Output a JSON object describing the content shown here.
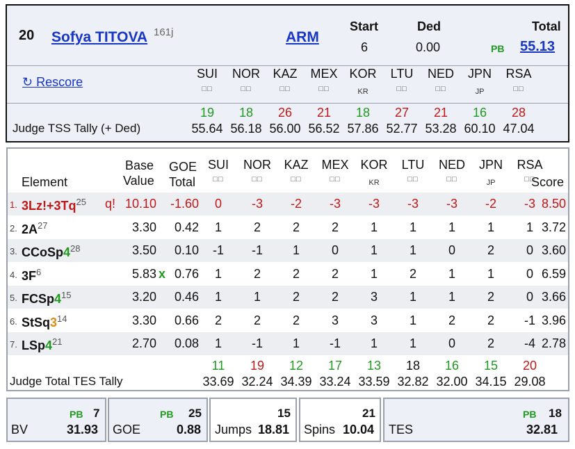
{
  "skater": {
    "rank": "20",
    "name": "Sofya TITOVA",
    "sup": "161j",
    "nation": "ARM",
    "start_label": "Start",
    "start": "6",
    "ded_label": "Ded",
    "ded": "0.00",
    "total_label": "Total",
    "pb": "PB",
    "total": "55.13"
  },
  "rescore": "↻ Rescore",
  "judges": [
    {
      "code": "SUI",
      "sub": "",
      "tss_rank": "19",
      "tss_color": "green",
      "tss": "55.64",
      "tes_rank": "11",
      "tes_color": "green",
      "tes": "33.69"
    },
    {
      "code": "NOR",
      "sub": "",
      "tss_rank": "18",
      "tss_color": "green",
      "tss": "56.18",
      "tes_rank": "19",
      "tes_color": "red",
      "tes": "32.24"
    },
    {
      "code": "KAZ",
      "sub": "",
      "tss_rank": "26",
      "tss_color": "red",
      "tss": "56.00",
      "tes_rank": "12",
      "tes_color": "green",
      "tes": "34.39"
    },
    {
      "code": "MEX",
      "sub": "",
      "tss_rank": "21",
      "tss_color": "red",
      "tss": "56.52",
      "tes_rank": "17",
      "tes_color": "green",
      "tes": "33.24"
    },
    {
      "code": "KOR",
      "sub": "KR",
      "tss_rank": "18",
      "tss_color": "green",
      "tss": "57.86",
      "tes_rank": "13",
      "tes_color": "green",
      "tes": "33.59"
    },
    {
      "code": "LTU",
      "sub": "",
      "tss_rank": "27",
      "tss_color": "red",
      "tss": "52.77",
      "tes_rank": "18",
      "tes_color": "black",
      "tes": "32.82"
    },
    {
      "code": "NED",
      "sub": "",
      "tss_rank": "21",
      "tss_color": "red",
      "tss": "53.28",
      "tes_rank": "16",
      "tes_color": "green",
      "tes": "32.00"
    },
    {
      "code": "JPN",
      "sub": "JP",
      "tss_rank": "16",
      "tss_color": "green",
      "tss": "60.10",
      "tes_rank": "15",
      "tes_color": "green",
      "tes": "34.15"
    },
    {
      "code": "RSA",
      "sub": "",
      "tss_rank": "28",
      "tss_color": "red",
      "tss": "47.04",
      "tes_rank": "20",
      "tes_color": "red",
      "tes": "29.08"
    }
  ],
  "flag_glyph": "□□",
  "tss_label": "Judge TSS Tally (+ Ded)",
  "tes_label": "Judge Total TES Tally",
  "table_head": {
    "element": "Element",
    "base1": "Base",
    "base2": "Value",
    "goe1": "GOE",
    "goe2": "Total",
    "score": "Score"
  },
  "elements": [
    {
      "n": "1.",
      "name": "3Lz!+3Tq",
      "level": "",
      "sup": "25",
      "note": "q!",
      "base": "10.10",
      "x": "",
      "goe": "-1.60",
      "marks": [
        "0",
        "-3",
        "-2",
        "-3",
        "-3",
        "-3",
        "-3",
        "-2",
        "-3"
      ],
      "score": "8.50",
      "red": true
    },
    {
      "n": "2.",
      "name": "2A",
      "level": "",
      "sup": "27",
      "note": "",
      "base": "3.30",
      "x": "",
      "goe": "0.42",
      "marks": [
        "1",
        "2",
        "2",
        "2",
        "1",
        "1",
        "1",
        "1",
        "1"
      ],
      "score": "3.72"
    },
    {
      "n": "3.",
      "name": "CCoSp",
      "level": "4",
      "sup": "28",
      "note": "",
      "base": "3.50",
      "x": "",
      "goe": "0.10",
      "marks": [
        "-1",
        "-1",
        "1",
        "0",
        "1",
        "1",
        "0",
        "2",
        "0"
      ],
      "score": "3.60"
    },
    {
      "n": "4.",
      "name": "3F",
      "level": "",
      "sup": "6",
      "note": "",
      "base": "5.83",
      "x": "x",
      "goe": "0.76",
      "marks": [
        "1",
        "2",
        "2",
        "2",
        "1",
        "2",
        "1",
        "1",
        "0"
      ],
      "score": "6.59"
    },
    {
      "n": "5.",
      "name": "FCSp",
      "level": "4",
      "sup": "15",
      "note": "",
      "base": "3.20",
      "x": "",
      "goe": "0.46",
      "marks": [
        "1",
        "1",
        "2",
        "2",
        "3",
        "1",
        "1",
        "2",
        "0"
      ],
      "score": "3.66"
    },
    {
      "n": "6.",
      "name": "StSq",
      "level": "3",
      "sup": "14",
      "note": "",
      "base": "3.30",
      "x": "",
      "goe": "0.66",
      "marks": [
        "2",
        "2",
        "2",
        "3",
        "3",
        "1",
        "2",
        "2",
        "-1"
      ],
      "score": "3.96"
    },
    {
      "n": "7.",
      "name": "LSp",
      "level": "4",
      "sup": "21",
      "note": "",
      "base": "2.70",
      "x": "",
      "goe": "0.08",
      "marks": [
        "1",
        "-1",
        "1",
        "-1",
        "1",
        "1",
        "0",
        "2",
        "-4"
      ],
      "score": "2.78"
    }
  ],
  "summary": {
    "bv_label": "BV",
    "bv_rank": "7",
    "bv": "31.93",
    "goe_label": "GOE",
    "goe_rank": "25",
    "goe": "0.88",
    "jumps_label": "Jumps",
    "jumps_rank": "15",
    "jumps": "18.81",
    "spins_label": "Spins",
    "spins_rank": "21",
    "spins": "10.04",
    "tes_label": "TES",
    "tes_rank": "18",
    "tes": "32.81",
    "pb": "PB"
  },
  "colors": {
    "green": "#1f9a1f",
    "red": "#c01818",
    "link": "#1736c4",
    "header_bg": "#eef0f7"
  }
}
